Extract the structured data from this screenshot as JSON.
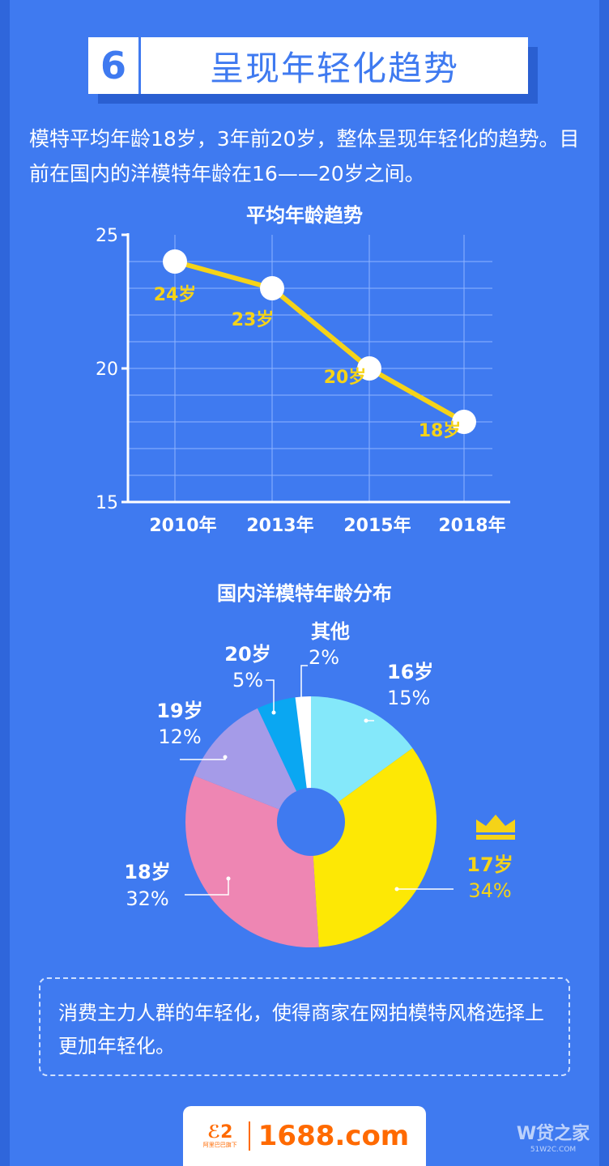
{
  "banner": {
    "number": "6",
    "title": "呈现年轻化趋势"
  },
  "intro": {
    "text": "模特平均年龄18岁，3年前20岁，整体呈现年轻化的趋势。目前在国内的洋模特年龄在16——20岁之间。"
  },
  "chart_data": [
    {
      "type": "line",
      "title": "平均年龄趋势",
      "categories": [
        "2010年",
        "2013年",
        "2015年",
        "2018年"
      ],
      "series": [
        {
          "values": [
            24,
            23,
            20,
            18
          ],
          "labels": [
            "24岁",
            "23岁",
            "20岁",
            "18岁"
          ]
        }
      ],
      "ylim": [
        15,
        25
      ],
      "yticks": [
        "15",
        "20",
        "25"
      ],
      "grid": true,
      "line_color": "#f5d318"
    },
    {
      "type": "pie",
      "title": "国内洋模特年龄分布",
      "slices": [
        {
          "name": "16岁",
          "value": 15,
          "label": "15%",
          "color": "#84e8fa"
        },
        {
          "name": "17岁",
          "value": 34,
          "label": "34%",
          "color": "#fde805"
        },
        {
          "name": "18岁",
          "value": 32,
          "label": "32%",
          "color": "#ee86b3"
        },
        {
          "name": "19岁",
          "value": 12,
          "label": "12%",
          "color": "#a59be8"
        },
        {
          "name": "20岁",
          "value": 5,
          "label": "5%",
          "color": "#0aa7f2"
        },
        {
          "name": "其他",
          "value": 2,
          "label": "2%",
          "color": "#ffffff"
        }
      ],
      "highlight_icon": "crown-icon",
      "highlight_color": "#f5d318"
    }
  ],
  "note": {
    "text": "消费主力人群的年轻化，使得商家在网拍模特风格选择上更加年轻化。"
  },
  "footer": {
    "logo_glyph": "ℰ2",
    "logo_tiny": "阿里巴巴旗下",
    "logo_text": "1688.com"
  },
  "watermark": {
    "main": "W贷之家",
    "sub": "51W2C.COM"
  }
}
